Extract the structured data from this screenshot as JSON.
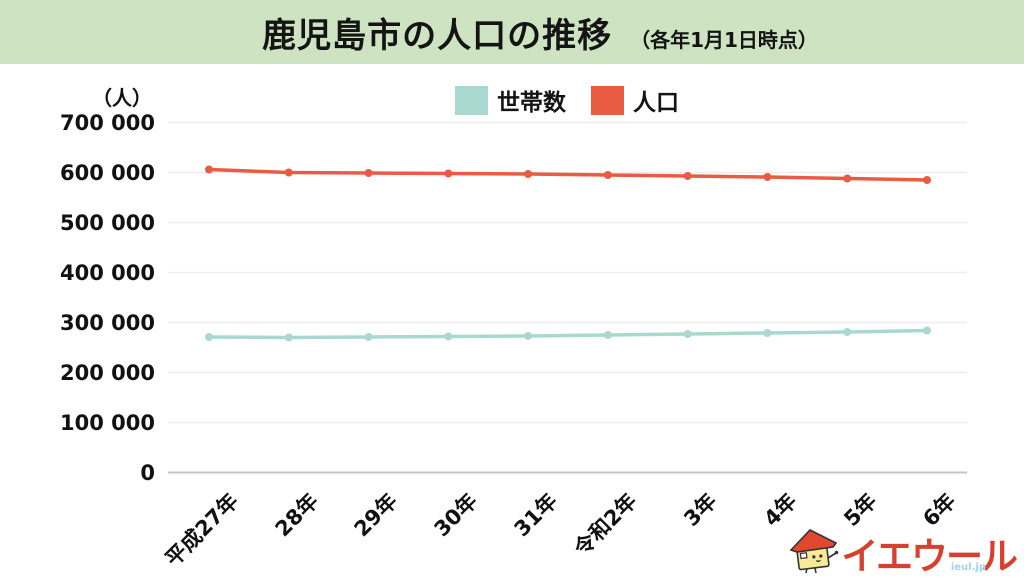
{
  "header": {
    "title": "鹿児島市の人口の推移",
    "subtitle": "（各年1月1日時点）"
  },
  "chart_data": {
    "type": "line",
    "title": "鹿児島市の人口の推移（各年1月1日時点）",
    "unit_label": "（人）",
    "categories": [
      "平成27年",
      "28年",
      "29年",
      "30年",
      "31年",
      "令和2年",
      "3年",
      "4年",
      "5年",
      "6年"
    ],
    "series": [
      {
        "name": "世帯数",
        "color": "#a8d8d0",
        "values": [
          271000,
          270000,
          271000,
          272000,
          273000,
          275000,
          277000,
          279000,
          281000,
          284000
        ]
      },
      {
        "name": "人口",
        "color": "#ea5b43",
        "values": [
          606000,
          600000,
          599000,
          598000,
          597000,
          595000,
          593000,
          591000,
          588000,
          585000
        ]
      }
    ],
    "ylim": [
      0,
      700000
    ],
    "ytick_values": [
      0,
      100000,
      200000,
      300000,
      400000,
      500000,
      600000,
      700000
    ],
    "ytick_labels": [
      "0",
      "100 000",
      "200 000",
      "300 000",
      "400 000",
      "500 000",
      "600 000",
      "700 000"
    ],
    "grid": "horizontal",
    "legend_position": "top-center"
  },
  "logo": {
    "text": "イエウール",
    "domain": "ieul.jp"
  },
  "colors": {
    "header_bg": "#cee3c2",
    "grid_line": "#ededed",
    "zero_line": "#c6c6c6",
    "logo_red": "#d6402e"
  }
}
